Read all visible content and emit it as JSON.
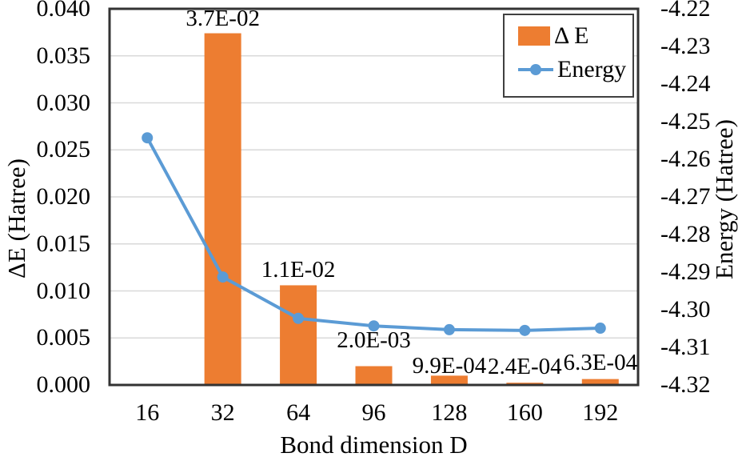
{
  "chart_data": {
    "type": "combo-bar-line",
    "categories": [
      "16",
      "32",
      "64",
      "96",
      "128",
      "160",
      "192"
    ],
    "xlabel": "Bond dimension D",
    "ylabel_left": "ΔE (Hatree)",
    "ylabel_right": "Energy (Hatree)",
    "left_axis": {
      "min": 0.0,
      "max": 0.04,
      "ticks": [
        "0.040",
        "0.035",
        "0.030",
        "0.025",
        "0.020",
        "0.015",
        "0.010",
        "0.005",
        "0.000"
      ]
    },
    "right_axis": {
      "min": -4.32,
      "max": -4.22,
      "ticks": [
        "-4.22",
        "-4.23",
        "-4.24",
        "-4.25",
        "-4.26",
        "-4.27",
        "-4.28",
        "-4.29",
        "-4.30",
        "-4.31",
        "-4.32"
      ]
    },
    "series": [
      {
        "name": "Δ E",
        "type": "bar",
        "axis": "left",
        "color": "#ED7D31",
        "values": [
          null,
          0.0374,
          0.0106,
          0.002,
          0.00099,
          0.00024,
          0.00063
        ],
        "labels": [
          "",
          "3.7E-02",
          "1.1E-02",
          "2.0E-03",
          "9.9E-04",
          "2.4E-04",
          "6.3E-04"
        ]
      },
      {
        "name": "Energy",
        "type": "line",
        "axis": "right",
        "color": "#5B9BD5",
        "values": [
          -4.2543,
          -4.2913,
          -4.3023,
          -4.3043,
          -4.3053,
          -4.3055,
          -4.3049
        ]
      }
    ],
    "grid": "horizontal",
    "grid_color": "#D9D9D9",
    "axis_color": "#333333",
    "background_color": "#ffffff",
    "legend_position": "top-right"
  }
}
